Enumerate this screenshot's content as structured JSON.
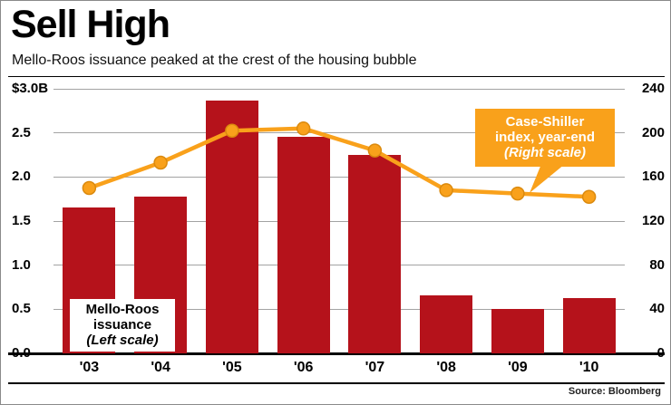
{
  "header": {
    "title": "Sell High",
    "subtitle": "Mello-Roos issuance peaked at the crest of the housing bubble"
  },
  "source": "Source: Bloomberg",
  "annotations": {
    "bar": {
      "line1": "Mello-Roos",
      "line2": "issuance",
      "line3": "(Left scale)"
    },
    "line": {
      "line1": "Case-Shiller",
      "line2": "index, year-end",
      "line3": "(Right scale)"
    }
  },
  "chart_data": {
    "type": "combo",
    "title": "Sell High",
    "subtitle": "Mello-Roos issuance peaked at the crest of the housing bubble",
    "categories": [
      "'03",
      "'04",
      "'05",
      "'06",
      "'07",
      "'08",
      "'09",
      "'10"
    ],
    "series": [
      {
        "name": "Mello-Roos issuance",
        "type": "bar",
        "axis": "left",
        "color": "#b5121b",
        "values": [
          1.65,
          1.78,
          2.87,
          2.46,
          2.25,
          0.66,
          0.5,
          0.63
        ]
      },
      {
        "name": "Case-Shiller index, year-end",
        "type": "line",
        "axis": "right",
        "color": "#f9a11b",
        "marker_edge_color": "#db8a0e",
        "values": [
          150,
          173,
          202,
          204,
          184,
          148,
          145,
          142
        ]
      }
    ],
    "left_axis": {
      "ticks": [
        "$3.0B",
        "2.5",
        "2.0",
        "1.5",
        "1.0",
        "0.5",
        "0.0"
      ],
      "min": 0,
      "max": 3.0
    },
    "right_axis": {
      "ticks": [
        "240",
        "200",
        "160",
        "120",
        "80",
        "40",
        "0"
      ],
      "min": 0,
      "max": 240
    },
    "grid": "horizontal",
    "legend_position": "annotations-on-plot"
  }
}
